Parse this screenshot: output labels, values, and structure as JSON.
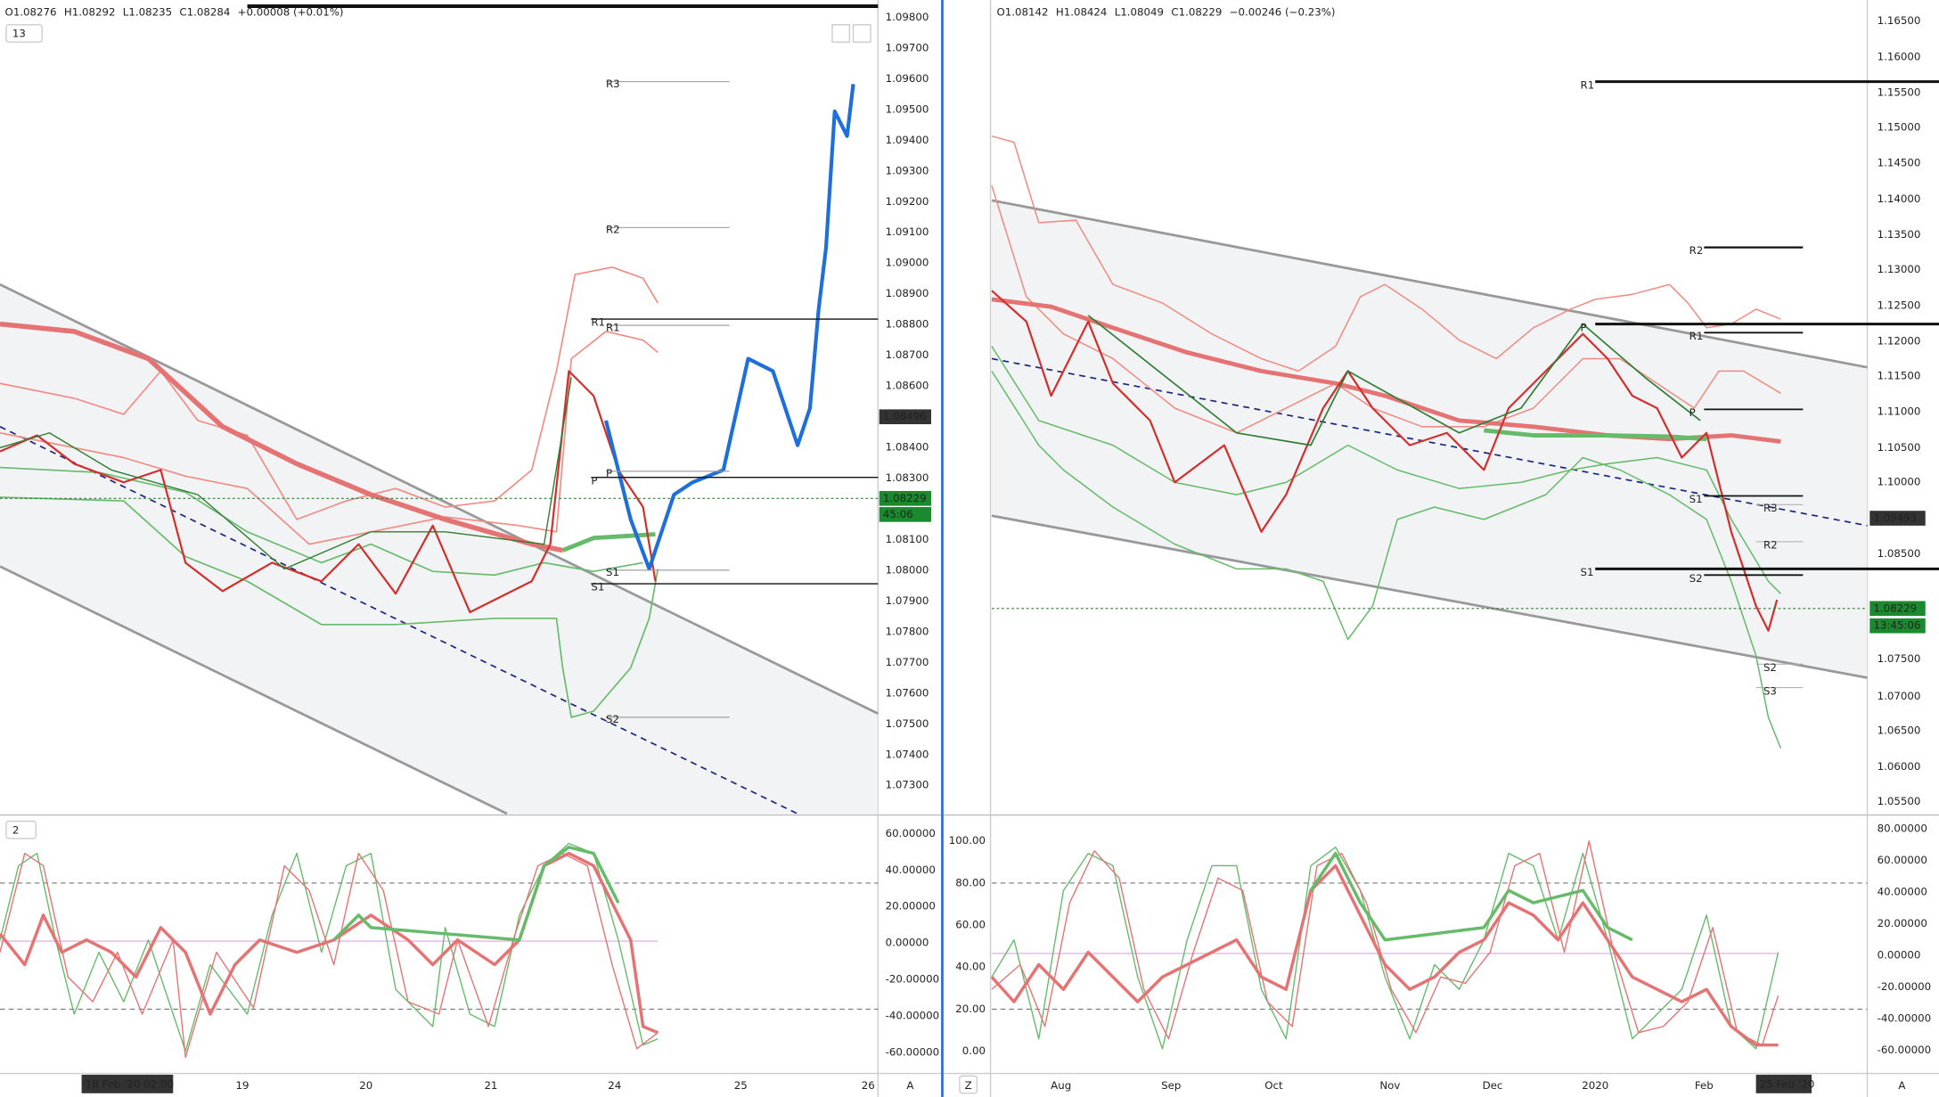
{
  "left": {
    "ohlc": [
      "O1.08276",
      "H1.08292",
      "L1.08235",
      "C1.08284",
      "+0.00008 (+0.01%)"
    ],
    "study_toggle": "13",
    "price_axis": [
      "1.09800",
      "1.09700",
      "1.09600",
      "1.09500",
      "1.09400",
      "1.09300",
      "1.09200",
      "1.09100",
      "1.09000",
      "1.08900",
      "1.08800",
      "1.08700",
      "1.08600",
      "1.08400",
      "1.08300",
      "1.08100",
      "1.08000",
      "1.07900",
      "1.07800",
      "1.07700",
      "1.07600",
      "1.07500",
      "1.07400",
      "1.07300"
    ],
    "crosshair_price": "1.08496",
    "current_price": "1.08229",
    "countdown": "45:06",
    "pivots": [
      "R3",
      "R2",
      "R1",
      "R1",
      "P",
      "P",
      "S1",
      "S1",
      "S2"
    ],
    "osc_toggle": "2",
    "osc_axis": [
      "60.00000",
      "40.00000",
      "20.00000",
      "0.00000",
      "-20.00000",
      "-40.00000",
      "-60.00000"
    ],
    "time_axis": [
      "19",
      "20",
      "21",
      "24",
      "25",
      "26"
    ],
    "time_cursor": "18 Feb '20   02:00",
    "auto": "A"
  },
  "right": {
    "ohlc": [
      "O1.08142",
      "H1.08424",
      "L1.08049",
      "C1.08229",
      "−0.00246 (−0.23%)"
    ],
    "price_axis": [
      "1.16500",
      "1.16000",
      "1.15500",
      "1.15000",
      "1.14500",
      "1.14000",
      "1.13500",
      "1.13000",
      "1.12500",
      "1.12000",
      "1.11500",
      "1.11000",
      "1.10500",
      "1.10000",
      "1.08500",
      "1.07500",
      "1.07000",
      "1.06500",
      "1.06000",
      "1.05500"
    ],
    "line_price": "1.09493",
    "current_price": "1.08229",
    "countdown": "13:45:06",
    "pivots": [
      "R1",
      "R2",
      "P",
      "R1",
      "P",
      "S1",
      "R3",
      "R2",
      "S1",
      "S2",
      "S2",
      "S3"
    ],
    "osc_axis_right": [
      "80.00000",
      "60.00000",
      "40.00000",
      "20.00000",
      "0.00000",
      "-20.00000",
      "-40.00000",
      "-60.00000"
    ],
    "osc_axis_left": [
      "100.00",
      "80.00",
      "60.00",
      "40.00",
      "20.00",
      "0.00"
    ],
    "time_axis": [
      "Aug",
      "Sep",
      "Oct",
      "Nov",
      "Dec",
      "2020",
      "Feb"
    ],
    "time_cursor": "25 Feb '20",
    "zoom": "Z",
    "auto": "A"
  }
}
